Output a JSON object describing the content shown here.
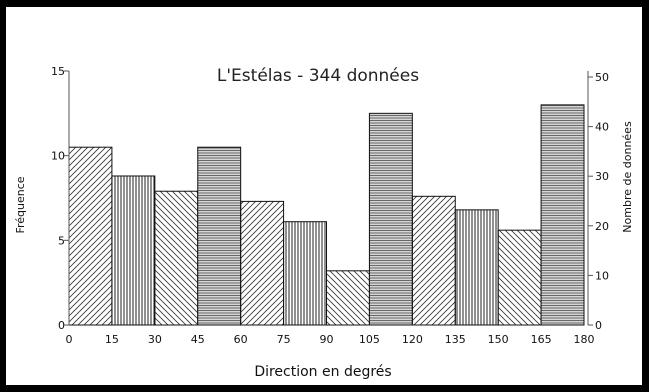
{
  "chart_data": {
    "type": "bar",
    "title": "L'Estélas - 344 données",
    "xlabel": "Direction en degrés",
    "ylabel": "Fréquence",
    "ylabel_right": "Nombre de données",
    "x_ticks": [
      "0",
      "15",
      "30",
      "45",
      "60",
      "75",
      "90",
      "105",
      "120",
      "135",
      "150",
      "165",
      "180"
    ],
    "y_ticks": [
      "0",
      "5",
      "10",
      "15"
    ],
    "y_ticks_right": [
      "0",
      "10",
      "20",
      "30",
      "40",
      "50"
    ],
    "xlim": [
      0,
      180
    ],
    "ylim": [
      0,
      15
    ],
    "ylim_right": [
      0,
      50
    ],
    "bin_width": 15,
    "bins": [
      {
        "start": 0,
        "end": 15,
        "value": 10.5,
        "pattern": "diag-right"
      },
      {
        "start": 15,
        "end": 30,
        "value": 8.8,
        "pattern": "vertical"
      },
      {
        "start": 30,
        "end": 45,
        "value": 7.9,
        "pattern": "diag-left"
      },
      {
        "start": 45,
        "end": 60,
        "value": 10.5,
        "pattern": "horizontal"
      },
      {
        "start": 60,
        "end": 75,
        "value": 7.3,
        "pattern": "diag-right"
      },
      {
        "start": 75,
        "end": 90,
        "value": 6.1,
        "pattern": "vertical"
      },
      {
        "start": 90,
        "end": 105,
        "value": 3.2,
        "pattern": "diag-left"
      },
      {
        "start": 105,
        "end": 120,
        "value": 12.5,
        "pattern": "horizontal"
      },
      {
        "start": 120,
        "end": 135,
        "value": 7.6,
        "pattern": "diag-right"
      },
      {
        "start": 135,
        "end": 150,
        "value": 6.8,
        "pattern": "vertical"
      },
      {
        "start": 150,
        "end": 165,
        "value": 5.6,
        "pattern": "diag-left"
      },
      {
        "start": 165,
        "end": 180,
        "value": 13.0,
        "pattern": "horizontal"
      }
    ],
    "grid": false,
    "legend": "none"
  }
}
